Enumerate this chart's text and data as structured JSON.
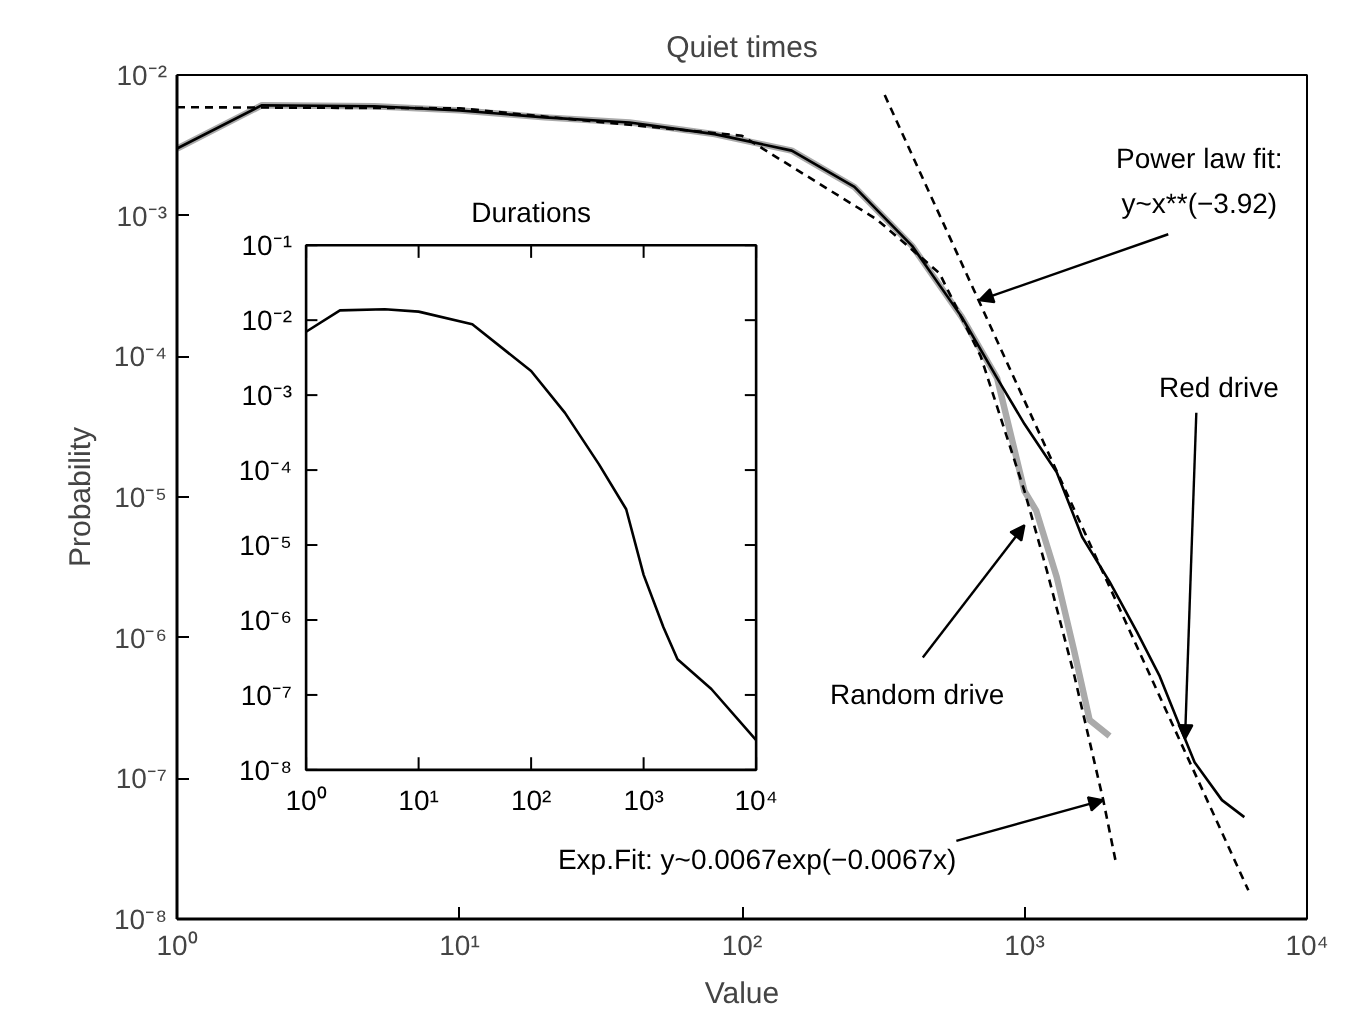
{
  "chart_data": [
    {
      "type": "line",
      "title": "Quiet times",
      "xlabel": "Value",
      "ylabel": "Probability",
      "log": "xy",
      "xlim": [
        1,
        10000
      ],
      "ylim": [
        1e-08,
        0.01
      ],
      "xticks": [
        {
          "value": 1,
          "label": "10⁰"
        },
        {
          "value": 10,
          "label": "10¹"
        },
        {
          "value": 100,
          "label": "10²"
        },
        {
          "value": 1000,
          "label": "10³"
        },
        {
          "value": 10000,
          "label": "10⁴"
        }
      ],
      "yticks": [
        {
          "value": 1e-08,
          "label": "10⁻⁸"
        },
        {
          "value": 1e-07,
          "label": "10⁻⁷"
        },
        {
          "value": 1e-06,
          "label": "10⁻⁶"
        },
        {
          "value": 1e-05,
          "label": "10⁻⁵"
        },
        {
          "value": 0.0001,
          "label": "10⁻⁴"
        },
        {
          "value": 0.001,
          "label": "10⁻³"
        },
        {
          "value": 0.01,
          "label": "10⁻²"
        }
      ],
      "series": [
        {
          "color": "#aaaaaa",
          "x": [
            1,
            2,
            5,
            10,
            20,
            40,
            80,
            150,
            250,
            400,
            600,
            800,
            1000,
            1100,
            1300,
            1500,
            1700,
            2000
          ],
          "values": [
            0.003,
            0.0061,
            0.006,
            0.0056,
            0.005,
            0.0046,
            0.0038,
            0.0029,
            0.0016,
            0.00061,
            0.00019,
            7e-05,
            1.1e-05,
            8e-06,
            2.7e-06,
            8e-07,
            2.6e-07,
            2e-07
          ]
        },
        {
          "color": "#000000",
          "x": [
            1,
            2,
            5,
            10,
            20,
            40,
            80,
            150,
            250,
            400,
            600,
            800,
            1000,
            1300,
            1600,
            2000,
            2500,
            3000,
            3500,
            4000,
            5000,
            6000
          ],
          "values": [
            0.003,
            0.0061,
            0.006,
            0.0056,
            0.005,
            0.0046,
            0.0038,
            0.0029,
            0.0016,
            0.00061,
            0.00019,
            7e-05,
            3.3e-05,
            1.5e-05,
            5.2e-06,
            2.5e-06,
            1.1e-06,
            5.4e-07,
            2.5e-07,
            1.3e-07,
            7e-08,
            5.3e-08
          ]
        },
        {
          "color": "#000000",
          "line_style": "dashed",
          "x": [
            320,
            6200
          ],
          "values": [
            0.0072,
            1.6e-08
          ]
        },
        {
          "color": "#000000",
          "line_style": "dashed",
          "x": [
            1,
            10,
            100,
            300,
            500,
            700,
            1000,
            1200,
            1500,
            1900,
            2100
          ],
          "values": [
            0.0059,
            0.0058,
            0.0037,
            0.00094,
            0.00039,
            0.0001,
            1.1e-05,
            3e-06,
            5.4e-07,
            7e-08,
            2.6e-08
          ]
        }
      ],
      "annotations": [
        {
          "text": "Power law fit:\ny~x**(−3.92)",
          "x": 690,
          "y": 0.00025
        },
        {
          "text": "Red drive",
          "x": 3700,
          "y": 1.9e-07
        },
        {
          "text": "Random drive",
          "x": 1000,
          "y": 6.3e-06
        },
        {
          "text": "Exp.Fit: y~0.0067exp(−0.0067x)",
          "x": 1900,
          "y": 7e-08
        }
      ]
    },
    {
      "type": "line",
      "title": "Durations",
      "log": "xy",
      "xlim": [
        1,
        10000
      ],
      "ylim": [
        1e-08,
        0.1
      ],
      "xticks": [
        {
          "value": 1,
          "label": "10⁰"
        },
        {
          "value": 10,
          "label": "10¹"
        },
        {
          "value": 100,
          "label": "10²"
        },
        {
          "value": 1000,
          "label": "10³"
        },
        {
          "value": 10000,
          "label": "10⁴"
        }
      ],
      "yticks": [
        {
          "value": 1e-08,
          "label": "10⁻⁸"
        },
        {
          "value": 1e-07,
          "label": "10⁻⁷"
        },
        {
          "value": 1e-06,
          "label": "10⁻⁶"
        },
        {
          "value": 1e-05,
          "label": "10⁻⁵"
        },
        {
          "value": 0.0001,
          "label": "10⁻⁴"
        },
        {
          "value": 0.001,
          "label": "10⁻³"
        },
        {
          "value": 0.01,
          "label": "10⁻²"
        },
        {
          "value": 0.1,
          "label": "10⁻¹"
        }
      ],
      "series": [
        {
          "color": "#000000",
          "x": [
            1,
            2,
            5,
            10,
            30,
            100,
            200,
            400,
            700,
            1000,
            1500,
            2000,
            4000,
            10000
          ],
          "values": [
            0.007,
            0.0135,
            0.014,
            0.013,
            0.0088,
            0.0021,
            0.00058,
            0.00012,
            3e-05,
            4e-06,
            8e-07,
            3e-07,
            1.2e-07,
            2.5e-08
          ]
        }
      ]
    }
  ]
}
